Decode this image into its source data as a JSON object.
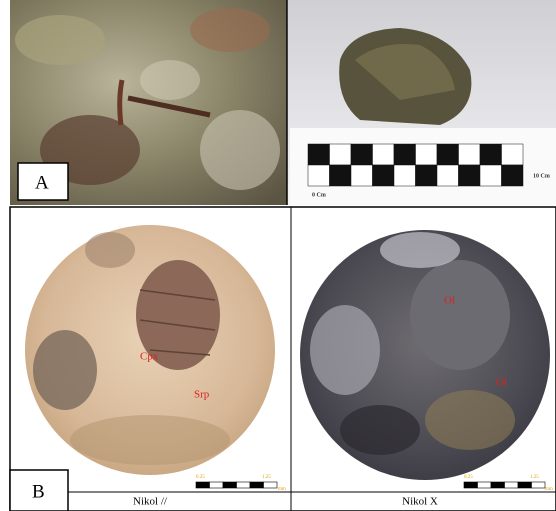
{
  "panel_a": {
    "label": "A",
    "scale_start": "0 Cm",
    "scale_end": "10 Cm"
  },
  "panel_b": {
    "label": "B",
    "left": {
      "caption": "Nikol //",
      "minerals": [
        "Cpx",
        "Srp"
      ],
      "scale_labels": [
        "0.25",
        "1.25"
      ],
      "scale_unit": "mm"
    },
    "right": {
      "caption": "Nikol X",
      "minerals": [
        "Ol",
        "Ol"
      ],
      "scale_labels": [
        "0.25",
        "1.25"
      ],
      "scale_unit": "mm"
    }
  }
}
